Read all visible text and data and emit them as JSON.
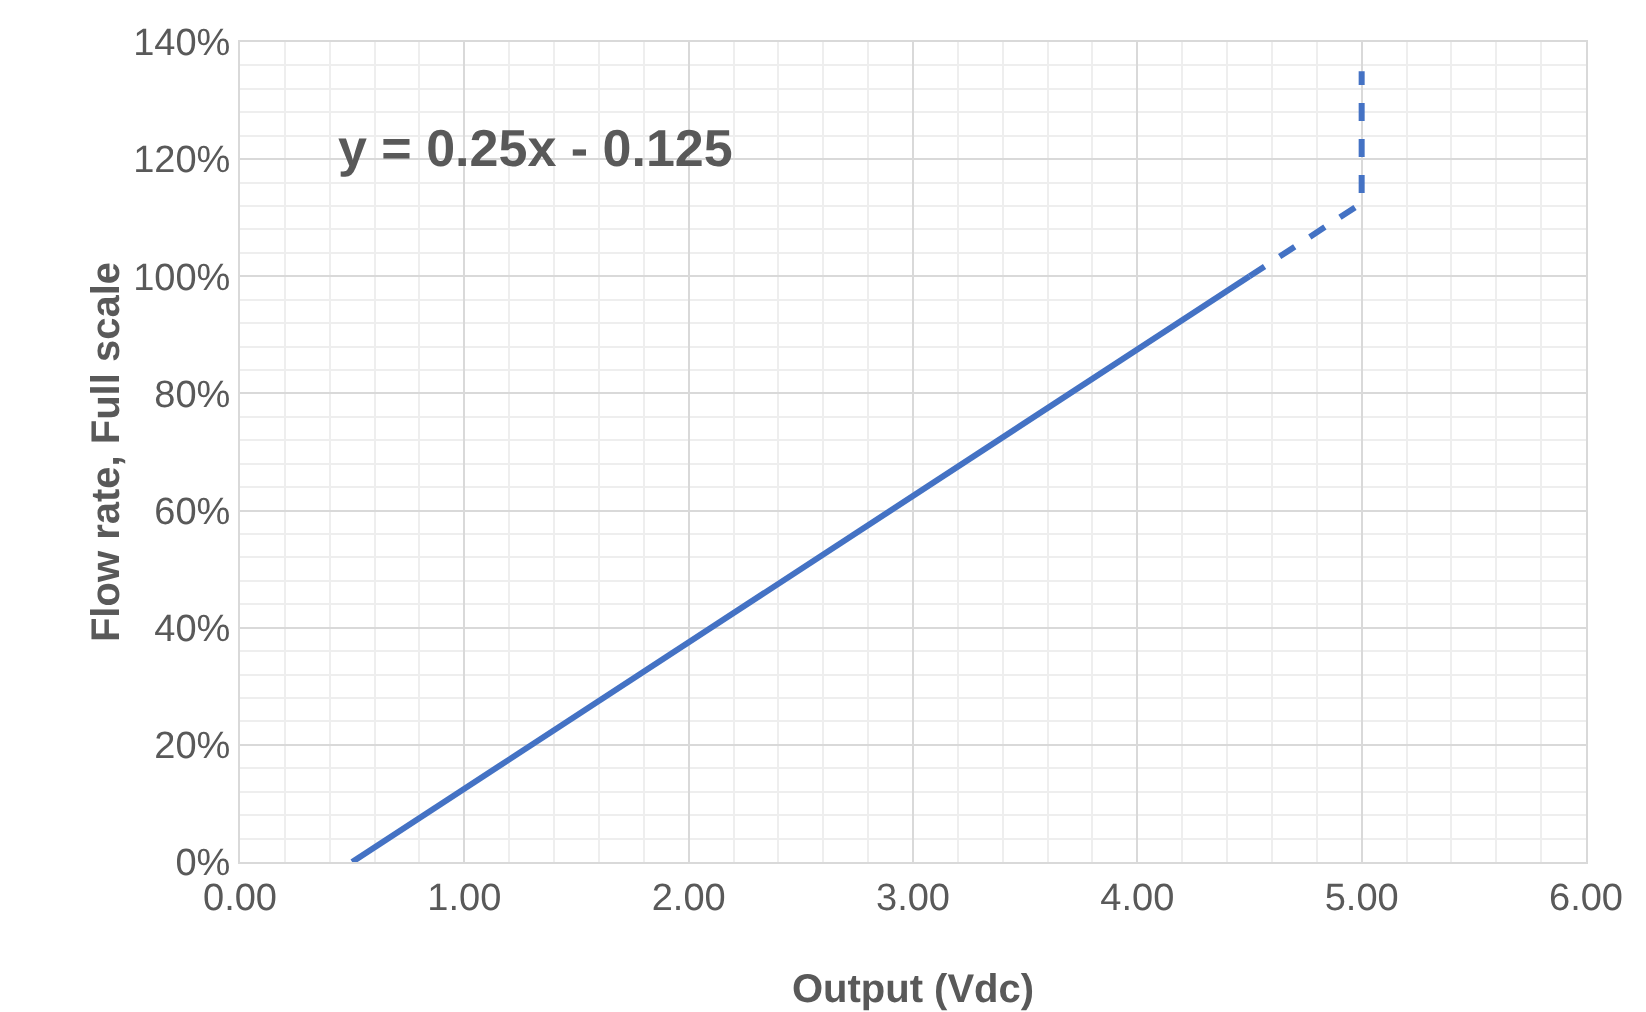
{
  "chart_data": {
    "type": "line",
    "xlabel": "Output (Vdc)",
    "ylabel": "Flow rate, Full scale",
    "annotations": [
      "y = 0.25x - 0.125"
    ],
    "series": [
      {
        "color": "#4472c4",
        "line_style": "solid",
        "x": [
          0.5,
          4.5
        ],
        "values": [
          0,
          100
        ]
      },
      {
        "color": "#4472c4",
        "line_style": "dashed",
        "x": [
          4.5,
          5,
          5
        ],
        "values": [
          100,
          112.5,
          135
        ]
      }
    ],
    "xlim": [
      0,
      6
    ],
    "xticks": [
      {
        "value": 0,
        "label": "0.00"
      },
      {
        "value": 1,
        "label": "1.00"
      },
      {
        "value": 2,
        "label": "2.00"
      },
      {
        "value": 3,
        "label": "3.00"
      },
      {
        "value": 4,
        "label": "4.00"
      },
      {
        "value": 5,
        "label": "5.00"
      },
      {
        "value": 6,
        "label": "6.00"
      }
    ],
    "ylim": [
      0,
      140
    ],
    "yticks": [
      {
        "value": 0,
        "label": "0%"
      },
      {
        "value": 20,
        "label": "20%"
      },
      {
        "value": 40,
        "label": "40%"
      },
      {
        "value": 60,
        "label": "60%"
      },
      {
        "value": 80,
        "label": "80%"
      },
      {
        "value": 100,
        "label": "100%"
      },
      {
        "value": 120,
        "label": "120%"
      },
      {
        "value": 140,
        "label": "140%"
      }
    ],
    "grid": true
  }
}
